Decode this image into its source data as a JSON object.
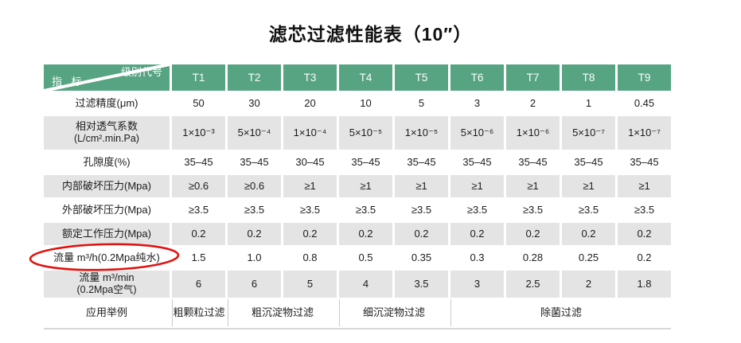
{
  "title": "滤芯过滤性能表（10″）",
  "table": {
    "corner": {
      "top_right": "级别代号",
      "bottom_left": "指 标"
    },
    "columns": [
      "T1",
      "T2",
      "T3",
      "T4",
      "T5",
      "T6",
      "T7",
      "T8",
      "T9"
    ],
    "rows": [
      {
        "label": "过滤精度(μm)",
        "sub": "",
        "values": [
          "50",
          "30",
          "20",
          "10",
          "5",
          "3",
          "2",
          "1",
          "0.45"
        ]
      },
      {
        "label": "相对透气系数",
        "sub": "(L/cm².min.Pa)",
        "values": [
          "1×10⁻³",
          "5×10⁻⁴",
          "1×10⁻⁴",
          "5×10⁻⁵",
          "1×10⁻⁵",
          "5×10⁻⁶",
          "1×10⁻⁶",
          "5×10⁻⁷",
          "1×10⁻⁷"
        ]
      },
      {
        "label": "孔隙度(%)",
        "sub": "",
        "values": [
          "35–45",
          "35–45",
          "30–45",
          "35–45",
          "35–45",
          "35–45",
          "35–45",
          "35–45",
          "35–45"
        ]
      },
      {
        "label": "内部破坏压力(Mpa)",
        "sub": "",
        "values": [
          "≥0.6",
          "≥0.6",
          "≥1",
          "≥1",
          "≥1",
          "≥1",
          "≥1",
          "≥1",
          "≥1"
        ]
      },
      {
        "label": "外部破坏压力(Mpa)",
        "sub": "",
        "values": [
          "≥3.5",
          "≥3.5",
          "≥3.5",
          "≥3.5",
          "≥3.5",
          "≥3.5",
          "≥3.5",
          "≥3.5",
          "≥3.5"
        ]
      },
      {
        "label": "额定工作压力(Mpa)",
        "sub": "",
        "values": [
          "0.2",
          "0.2",
          "0.2",
          "0.2",
          "0.2",
          "0.2",
          "0.2",
          "0.2",
          "0.2"
        ]
      },
      {
        "label": "流量 m³/h(0.2Mpa纯水)",
        "sub": "",
        "values": [
          "1.5",
          "1.0",
          "0.8",
          "0.5",
          "0.35",
          "0.3",
          "0.28",
          "0.25",
          "0.2"
        ]
      },
      {
        "label": "流量 m³/min",
        "sub": "(0.2Mpa空气)",
        "values": [
          "6",
          "6",
          "5",
          "4",
          "3.5",
          "3",
          "2.5",
          "2",
          "1.8"
        ]
      }
    ],
    "application_row": {
      "label": "应用举例",
      "groups": [
        {
          "label": "粗颗粒过滤",
          "span": 1
        },
        {
          "label": "粗沉淀物过滤",
          "span": 2
        },
        {
          "label": "细沉淀物过滤",
          "span": 2
        },
        {
          "label": "除菌过滤",
          "span": 4
        }
      ]
    }
  },
  "annotation": {
    "shape": "hand-drawn-ellipse",
    "around": "流量 m³/h(0.2Mpa纯水)",
    "color": "#e01310"
  },
  "colors": {
    "header_green": "#57a483",
    "row_gray": "#e4e4e4",
    "annotation_red": "#e01310",
    "divider_gray": "#d8d8d8"
  }
}
